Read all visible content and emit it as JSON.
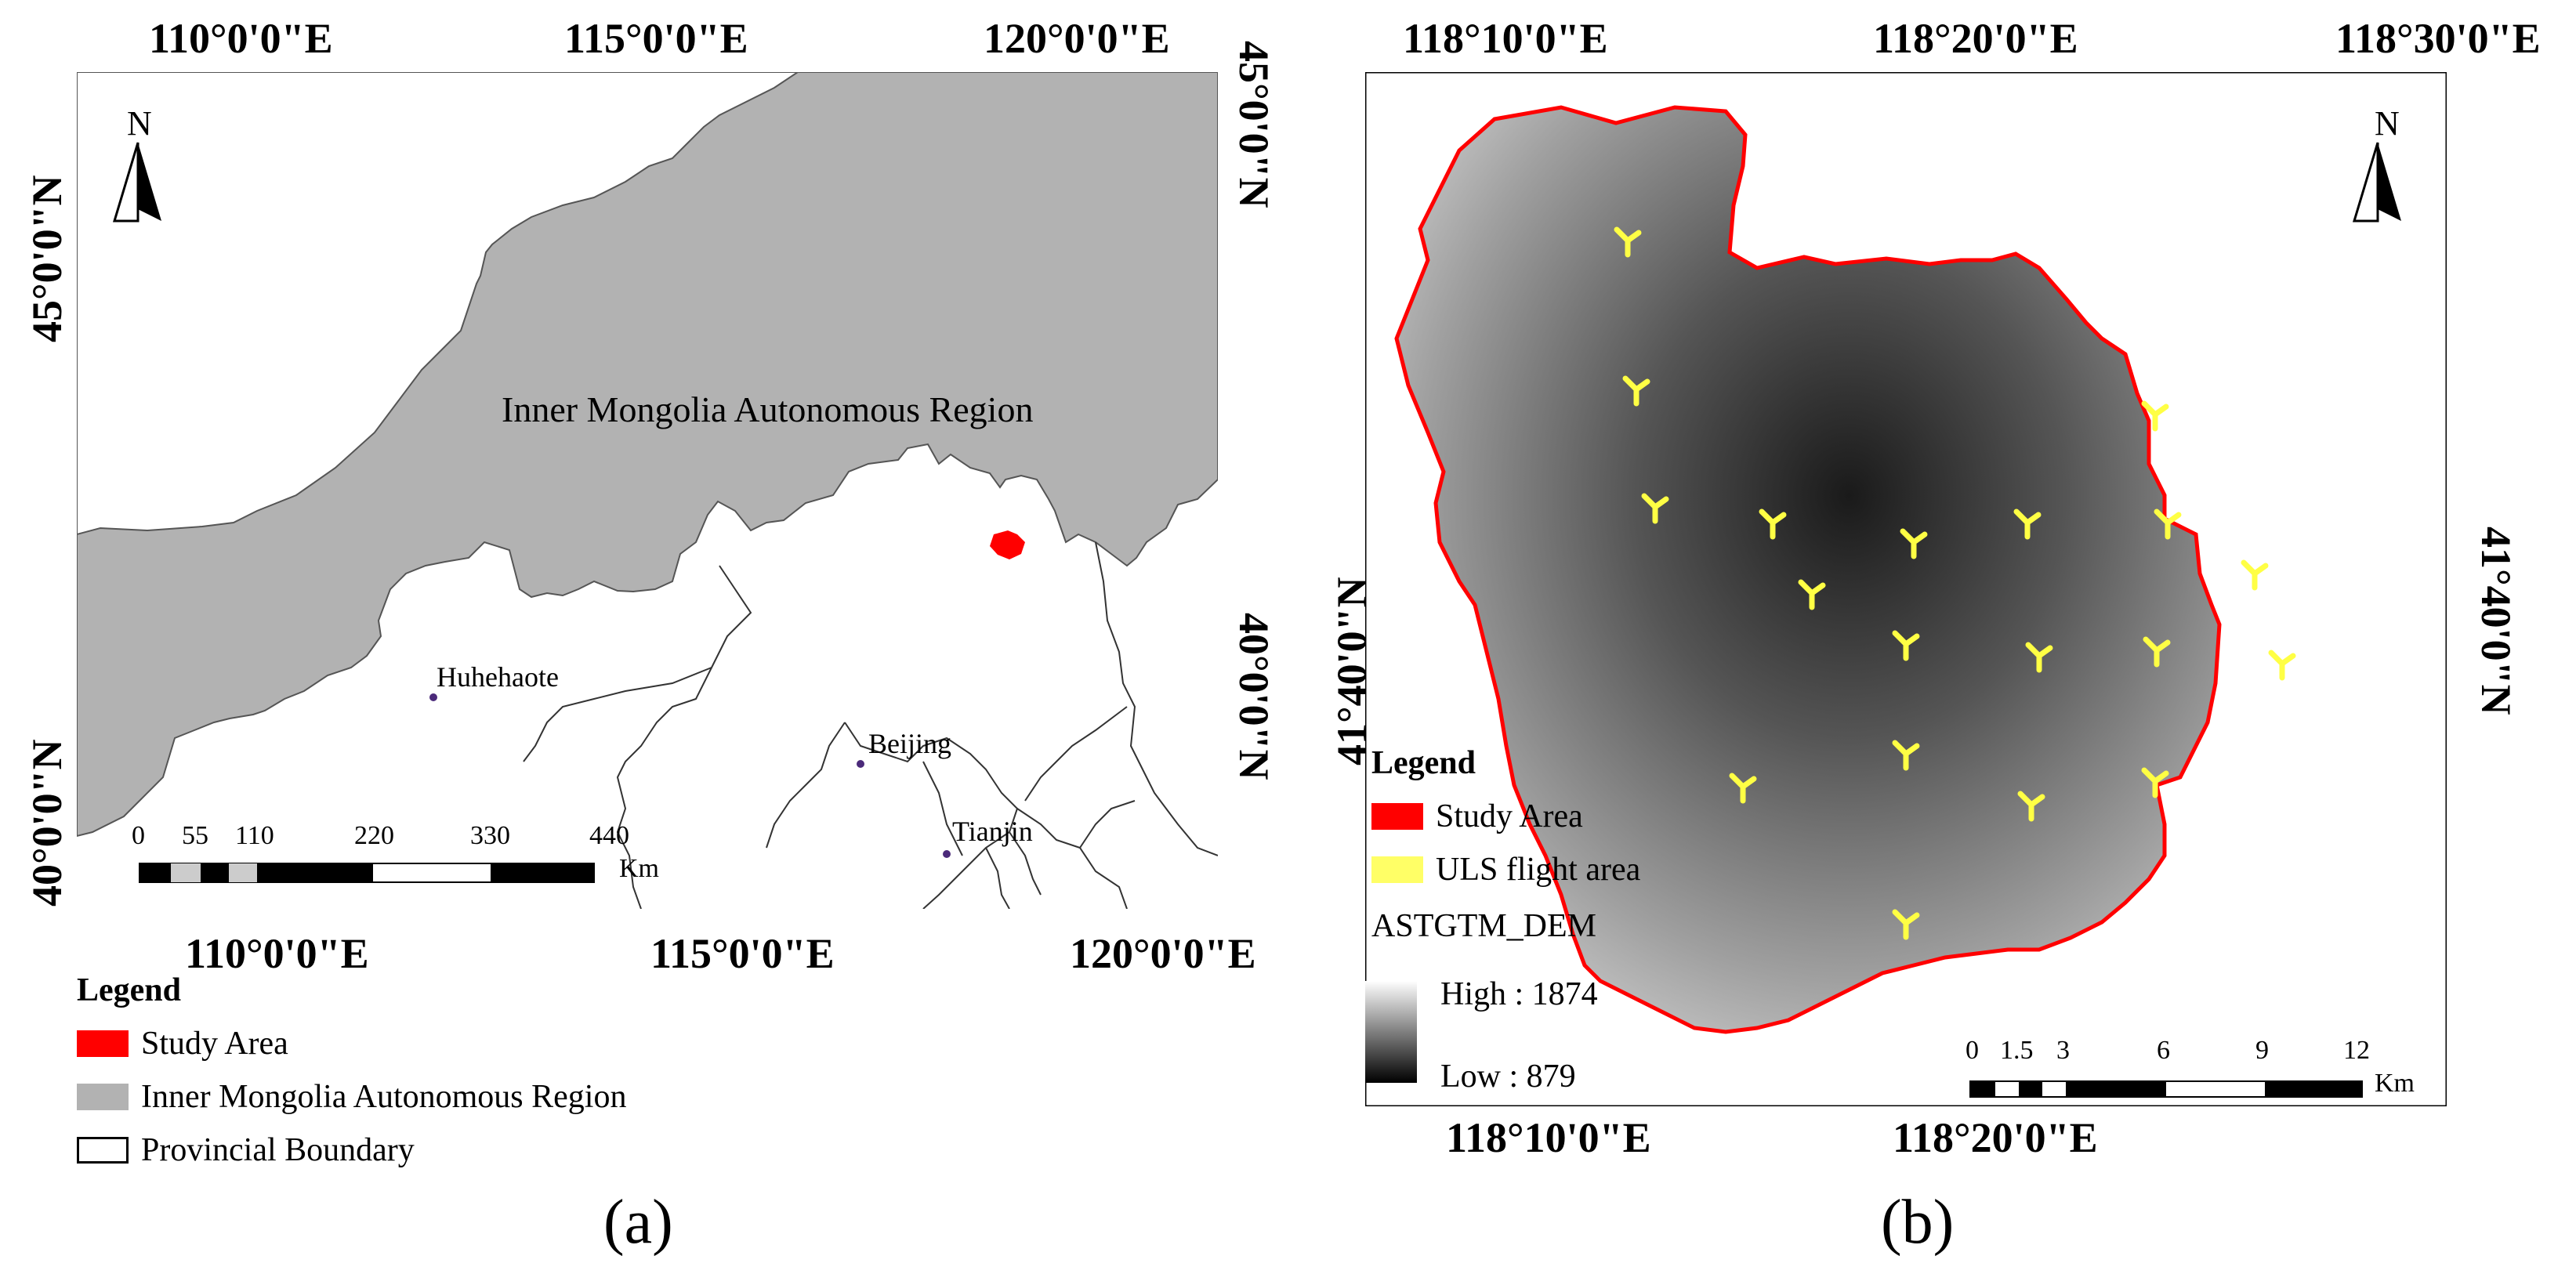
{
  "panel_a": {
    "label": "(a)",
    "top_axis": [
      "110°0'0\"E",
      "115°0'0\"E",
      "120°0'0\"E"
    ],
    "bottom_axis": [
      "110°0'0\"E",
      "115°0'0\"E",
      "120°0'0\"E"
    ],
    "left_axis": [
      "45°0'0\"N",
      "40°0'0\"N"
    ],
    "right_axis": [
      "45°0'0\"N",
      "40°0'0\"N"
    ],
    "north_label": "N",
    "region_label": "Inner Mongolia Autonomous Region",
    "cities": [
      "Huhehaote",
      "Beijing",
      "Tianjin"
    ],
    "scale_ticks": [
      "0",
      "55",
      "110",
      "220",
      "330",
      "440"
    ],
    "scale_unit": "Km",
    "legend": {
      "title": "Legend",
      "items": [
        {
          "label": "Study Area",
          "color": "#ff0000"
        },
        {
          "label": "Inner Mongolia Autonomous Region",
          "color": "#b2b2b2"
        },
        {
          "label": "Provincial Boundary",
          "color": "#ffffff"
        }
      ]
    }
  },
  "panel_b": {
    "label": "(b)",
    "top_axis": [
      "118°10'0\"E",
      "118°20'0\"E",
      "118°30'0\"E"
    ],
    "bottom_axis": [
      "118°10'0\"E",
      "118°20'0\"E"
    ],
    "left_axis": [
      "41°40'0\"N"
    ],
    "right_axis": [
      "41°40'0\"N"
    ],
    "north_label": "N",
    "scale_ticks": [
      "0",
      "1.5",
      "3",
      "6",
      "9",
      "12"
    ],
    "scale_unit": "Km",
    "legend": {
      "title": "Legend",
      "items": [
        {
          "label": "Study Area",
          "color": "#ff0000"
        },
        {
          "label": "ULS flight area",
          "color": "#ffff66"
        }
      ],
      "dem_title": "ASTGTM_DEM",
      "dem_high": "High : 1874",
      "dem_low": "Low : 879"
    }
  }
}
